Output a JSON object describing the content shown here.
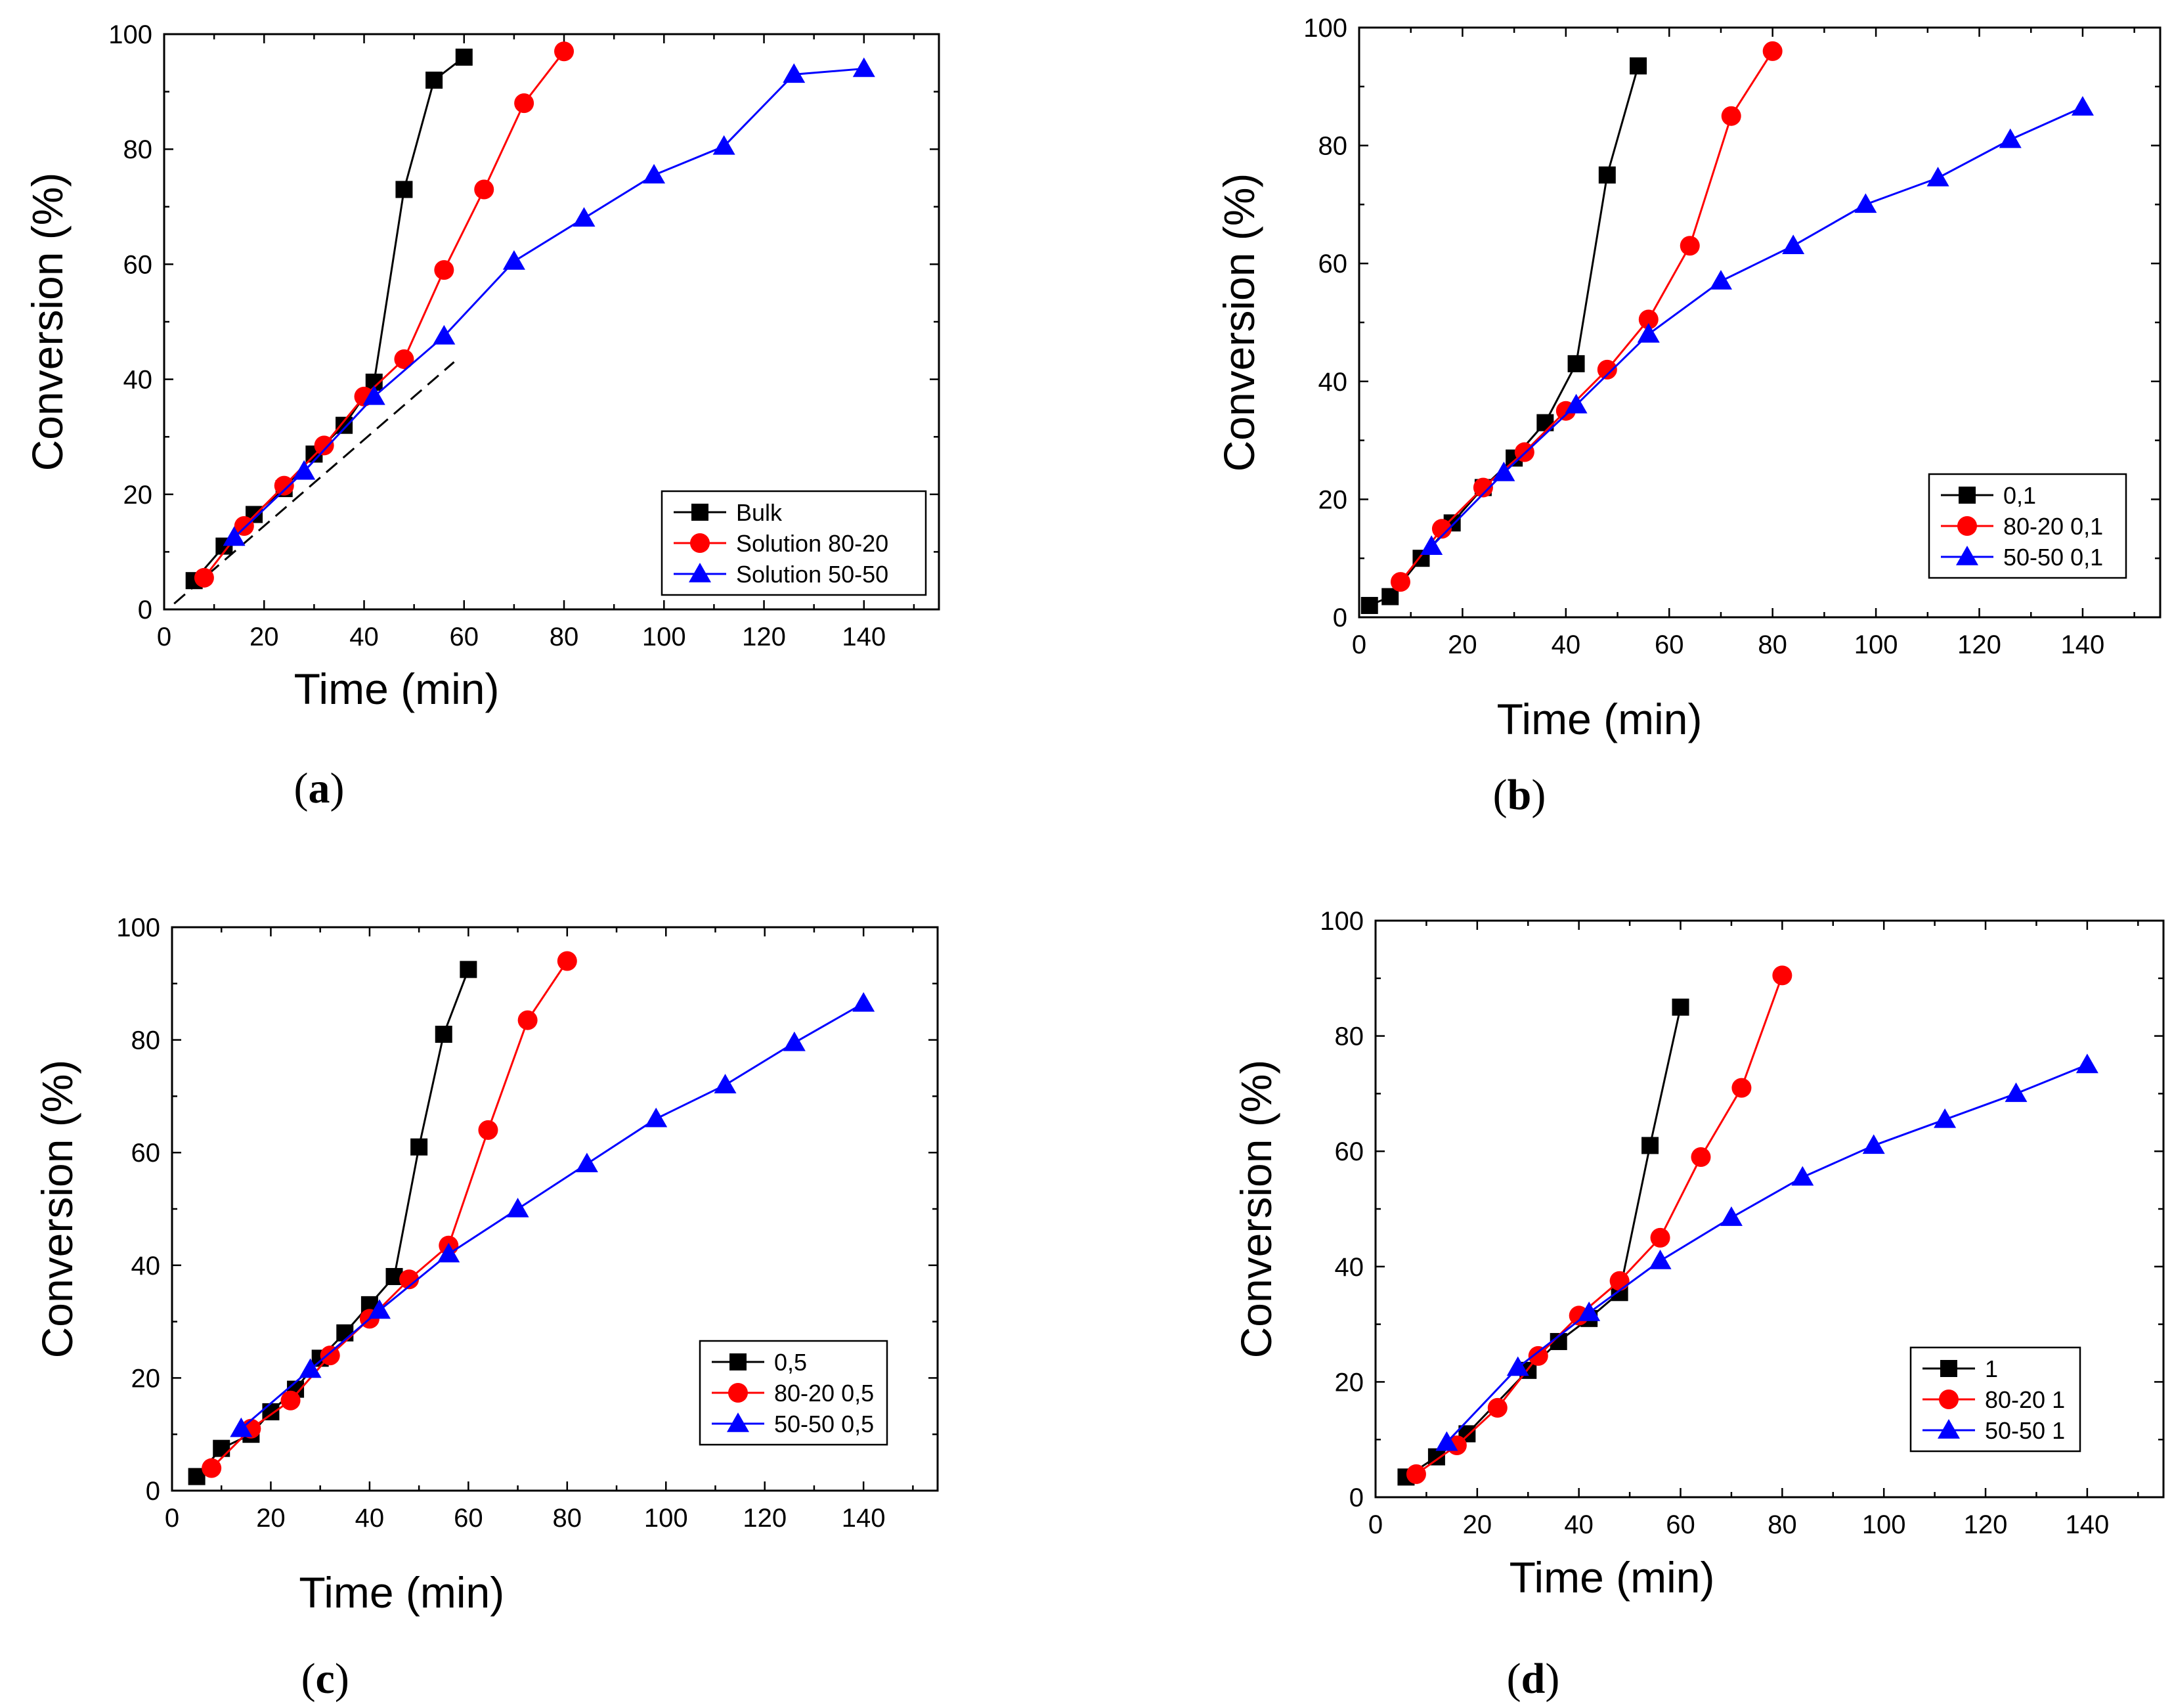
{
  "chart_data": [
    {
      "type": "line",
      "panel_label": "(a)",
      "xlabel": "Time (min)",
      "ylabel": "Conversion (%)",
      "xlim": [
        0,
        155
      ],
      "ylim": [
        0,
        100
      ],
      "xticks": [
        0,
        20,
        40,
        60,
        80,
        100,
        120,
        140
      ],
      "yticks": [
        0,
        20,
        40,
        60,
        80,
        100
      ],
      "legend_position": "bottom-right",
      "series": [
        {
          "name": "Bulk",
          "color": "#000000",
          "marker": "square",
          "x": [
            6,
            12,
            18,
            24,
            30,
            36,
            42,
            48,
            54,
            60
          ],
          "y": [
            5,
            11,
            16.5,
            21,
            27,
            32,
            39.5,
            73,
            92,
            96
          ]
        },
        {
          "name": "Solution 80-20",
          "color": "#ff0000",
          "marker": "circle",
          "x": [
            8,
            16,
            24,
            32,
            40,
            48,
            56,
            64,
            72,
            80
          ],
          "y": [
            5.5,
            14.5,
            21.5,
            28.5,
            37,
            43.5,
            59,
            73,
            88,
            97
          ]
        },
        {
          "name": "Solution 50-50",
          "color": "#0000ff",
          "marker": "triangle",
          "x": [
            14,
            28,
            42,
            56,
            70,
            84,
            98,
            112,
            126,
            140
          ],
          "y": [
            12.5,
            24,
            37,
            47.5,
            60.5,
            68,
            75.5,
            80.5,
            93,
            94
          ]
        }
      ],
      "dashed_lines": [
        {
          "x": [
            2,
            58
          ],
          "y": [
            1,
            43
          ]
        }
      ]
    },
    {
      "type": "line",
      "panel_label": "(b)",
      "xlabel": "Time (min)",
      "ylabel": "Conversion (%)",
      "xlim": [
        0,
        155
      ],
      "ylim": [
        0,
        100
      ],
      "xticks": [
        0,
        20,
        40,
        60,
        80,
        100,
        120,
        140
      ],
      "yticks": [
        0,
        20,
        40,
        60,
        80,
        100
      ],
      "legend_position": "bottom-right",
      "series": [
        {
          "name": "0,1",
          "color": "#000000",
          "marker": "square",
          "x": [
            2,
            6,
            12,
            18,
            24,
            30,
            36,
            42,
            48,
            54
          ],
          "y": [
            2,
            3.5,
            10,
            16,
            22,
            27,
            33,
            43,
            75,
            93.5
          ]
        },
        {
          "name": "80-20 0,1",
          "color": "#ff0000",
          "marker": "circle",
          "x": [
            8,
            16,
            24,
            32,
            40,
            48,
            56,
            64,
            72,
            80
          ],
          "y": [
            6,
            15,
            22,
            28,
            35,
            42,
            50.5,
            63,
            85,
            96
          ]
        },
        {
          "name": "50-50 0,1",
          "color": "#0000ff",
          "marker": "triangle",
          "x": [
            14,
            28,
            42,
            56,
            70,
            84,
            98,
            112,
            126,
            140
          ],
          "y": [
            12,
            24.5,
            36,
            48,
            57,
            63,
            70,
            74.5,
            81,
            86.5
          ]
        }
      ],
      "dashed_lines": []
    },
    {
      "type": "line",
      "panel_label": "(c)",
      "xlabel": "Time (min)",
      "ylabel": "Conversion (%)",
      "xlim": [
        0,
        155
      ],
      "ylim": [
        0,
        100
      ],
      "xticks": [
        0,
        20,
        40,
        60,
        80,
        100,
        120,
        140
      ],
      "yticks": [
        0,
        20,
        40,
        60,
        80,
        100
      ],
      "legend_position": "bottom-right",
      "series": [
        {
          "name": "0,5",
          "color": "#000000",
          "marker": "square",
          "x": [
            5,
            10,
            16,
            20,
            25,
            30,
            35,
            40,
            45,
            50,
            55,
            60
          ],
          "y": [
            2.5,
            7.5,
            10,
            14,
            18,
            23.5,
            28,
            33,
            38,
            61,
            81,
            92.5
          ]
        },
        {
          "name": "80-20 0,5",
          "color": "#ff0000",
          "marker": "circle",
          "x": [
            8,
            16,
            24,
            32,
            40,
            48,
            56,
            64,
            72,
            80
          ],
          "y": [
            4,
            11,
            16,
            24,
            30.5,
            37.5,
            43.5,
            64,
            83.5,
            94
          ]
        },
        {
          "name": "50-50 0,5",
          "color": "#0000ff",
          "marker": "triangle",
          "x": [
            14,
            28,
            42,
            56,
            70,
            84,
            98,
            112,
            126,
            140
          ],
          "y": [
            11,
            21.5,
            32,
            42,
            50,
            58,
            66,
            72,
            79.5,
            86.5
          ]
        }
      ],
      "dashed_lines": []
    },
    {
      "type": "line",
      "panel_label": "(d)",
      "xlabel": "Time (min)",
      "ylabel": "Conversion (%)",
      "xlim": [
        0,
        155
      ],
      "ylim": [
        0,
        100
      ],
      "xticks": [
        0,
        20,
        40,
        60,
        80,
        100,
        120,
        140
      ],
      "yticks": [
        0,
        20,
        40,
        60,
        80,
        100
      ],
      "legend_position": "bottom-right",
      "series": [
        {
          "name": "1",
          "color": "#000000",
          "marker": "square",
          "x": [
            6,
            12,
            18,
            30,
            36,
            42,
            48,
            54,
            60
          ],
          "y": [
            3.5,
            7,
            11,
            22,
            27,
            31,
            35.5,
            61,
            85
          ]
        },
        {
          "name": "80-20 1",
          "color": "#ff0000",
          "marker": "circle",
          "x": [
            8,
            16,
            24,
            32,
            40,
            48,
            56,
            64,
            72,
            80
          ],
          "y": [
            4,
            9,
            15.5,
            24.5,
            31.5,
            37.5,
            45,
            59,
            71,
            90.5
          ]
        },
        {
          "name": "50-50 1",
          "color": "#0000ff",
          "marker": "triangle",
          "x": [
            14,
            28,
            42,
            56,
            70,
            84,
            98,
            112,
            126,
            140
          ],
          "y": [
            9.5,
            22.5,
            32,
            41,
            48.5,
            55.5,
            61,
            65.5,
            70,
            75
          ]
        }
      ],
      "dashed_lines": []
    }
  ]
}
